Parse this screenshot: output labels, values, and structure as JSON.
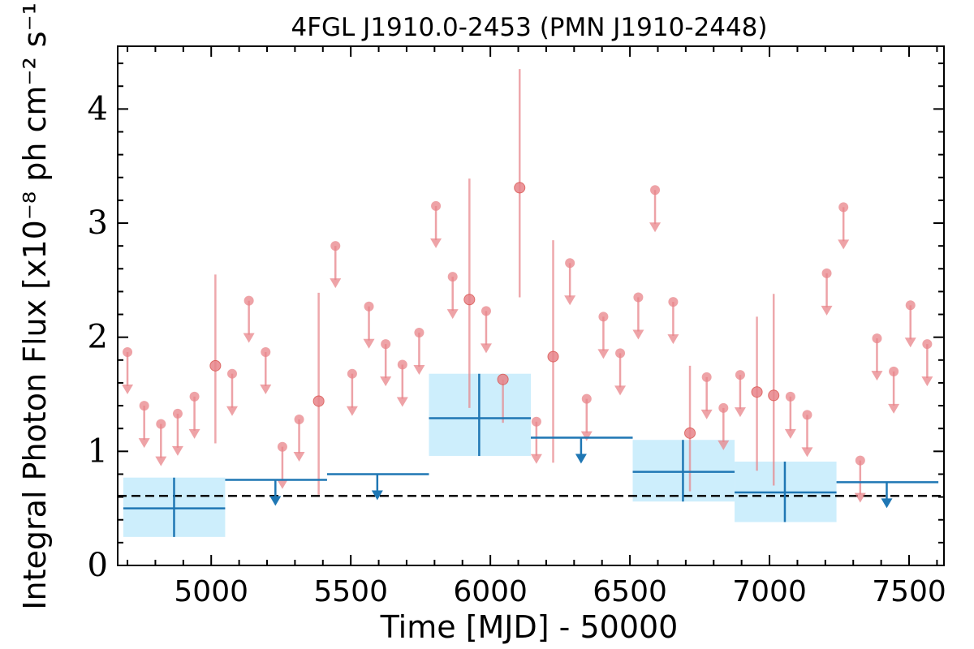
{
  "chart_data": {
    "type": "scatter",
    "title": "4FGL J1910.0-2453 (PMN J1910-2448)",
    "xlabel": "Time [MJD] - 50000",
    "ylabel": "Integral Photon Flux [x10⁻⁸ ph cm⁻² s⁻¹]",
    "xlim": [
      4665,
      7625
    ],
    "ylim": [
      0,
      4.55
    ],
    "xticks": [
      5000,
      5500,
      6000,
      6500,
      7000,
      7500
    ],
    "yticks": [
      0,
      1,
      2,
      3,
      4
    ],
    "xtick_labels": [
      "5000",
      "5500",
      "6000",
      "6500",
      "7000",
      "7500"
    ],
    "ytick_labels": [
      "0",
      "1",
      "2",
      "3",
      "4"
    ],
    "reference_line": {
      "y": 0.61,
      "style": "dashed",
      "color": "#000000"
    },
    "colors": {
      "short_bins": "#e8848a",
      "long_bins": "#1f77b4",
      "long_bins_fill": "#cdeefc"
    },
    "series": [
      {
        "color": "#e8848a",
        "detections": [
          {
            "x": 5015,
            "y": 1.75,
            "y_low": 1.07,
            "y_high": 2.55
          },
          {
            "x": 5385,
            "y": 1.44,
            "y_low": 0.62,
            "y_high": 2.39
          },
          {
            "x": 5925,
            "y": 2.33,
            "y_low": 1.38,
            "y_high": 3.39
          },
          {
            "x": 6045,
            "y": 1.63,
            "y_low": 1.25,
            "y_high": 1.63
          },
          {
            "x": 6105,
            "y": 3.31,
            "y_low": 2.35,
            "y_high": 4.35
          },
          {
            "x": 6225,
            "y": 1.83,
            "y_low": 0.9,
            "y_high": 2.85
          },
          {
            "x": 6715,
            "y": 1.16,
            "y_low": 0.65,
            "y_high": 1.75
          },
          {
            "x": 6955,
            "y": 1.52,
            "y_low": 0.83,
            "y_high": 2.18
          },
          {
            "x": 7015,
            "y": 1.49,
            "y_low": 0.7,
            "y_high": 2.38
          }
        ],
        "upper_limits": [
          {
            "x": 4700,
            "y": 1.87
          },
          {
            "x": 4760,
            "y": 1.4
          },
          {
            "x": 4820,
            "y": 1.24
          },
          {
            "x": 4880,
            "y": 1.33
          },
          {
            "x": 4940,
            "y": 1.48
          },
          {
            "x": 5075,
            "y": 1.68
          },
          {
            "x": 5135,
            "y": 2.32
          },
          {
            "x": 5195,
            "y": 1.87
          },
          {
            "x": 5255,
            "y": 1.04
          },
          {
            "x": 5315,
            "y": 1.28
          },
          {
            "x": 5445,
            "y": 2.8
          },
          {
            "x": 5505,
            "y": 1.68
          },
          {
            "x": 5565,
            "y": 2.27
          },
          {
            "x": 5625,
            "y": 1.94
          },
          {
            "x": 5685,
            "y": 1.76
          },
          {
            "x": 5745,
            "y": 2.04
          },
          {
            "x": 5805,
            "y": 3.15
          },
          {
            "x": 5865,
            "y": 2.53
          },
          {
            "x": 5985,
            "y": 2.23
          },
          {
            "x": 6165,
            "y": 1.26
          },
          {
            "x": 6285,
            "y": 2.65
          },
          {
            "x": 6345,
            "y": 1.46
          },
          {
            "x": 6405,
            "y": 2.18
          },
          {
            "x": 6465,
            "y": 1.86
          },
          {
            "x": 6530,
            "y": 2.35
          },
          {
            "x": 6590,
            "y": 3.29
          },
          {
            "x": 6655,
            "y": 2.31
          },
          {
            "x": 6775,
            "y": 1.65
          },
          {
            "x": 6835,
            "y": 1.38
          },
          {
            "x": 6895,
            "y": 1.67
          },
          {
            "x": 7075,
            "y": 1.48
          },
          {
            "x": 7135,
            "y": 1.32
          },
          {
            "x": 7205,
            "y": 2.56
          },
          {
            "x": 7265,
            "y": 3.14
          },
          {
            "x": 7325,
            "y": 0.92
          },
          {
            "x": 7385,
            "y": 1.99
          },
          {
            "x": 7445,
            "y": 1.7
          },
          {
            "x": 7505,
            "y": 2.28
          },
          {
            "x": 7565,
            "y": 1.94
          }
        ]
      },
      {
        "color": "#1f77b4",
        "detections": [
          {
            "x": 4867,
            "x_low": 4685,
            "x_high": 5050,
            "y": 0.5,
            "y_low": 0.25,
            "y_high": 0.77
          },
          {
            "x": 5960,
            "x_low": 5780,
            "x_high": 6145,
            "y": 1.29,
            "y_low": 0.96,
            "y_high": 1.68
          },
          {
            "x": 6690,
            "x_low": 6510,
            "x_high": 6875,
            "y": 0.82,
            "y_low": 0.56,
            "y_high": 1.1
          },
          {
            "x": 7055,
            "x_low": 6875,
            "x_high": 7240,
            "y": 0.64,
            "y_low": 0.38,
            "y_high": 0.91
          }
        ],
        "upper_limits": [
          {
            "x": 5230,
            "x_low": 5050,
            "x_high": 5415,
            "y": 0.75
          },
          {
            "x": 5595,
            "x_low": 5415,
            "x_high": 5780,
            "y": 0.8
          },
          {
            "x": 6325,
            "x_low": 6145,
            "x_high": 6510,
            "y": 1.12
          },
          {
            "x": 7420,
            "x_low": 7240,
            "x_high": 7605,
            "y": 0.73
          }
        ]
      }
    ]
  }
}
